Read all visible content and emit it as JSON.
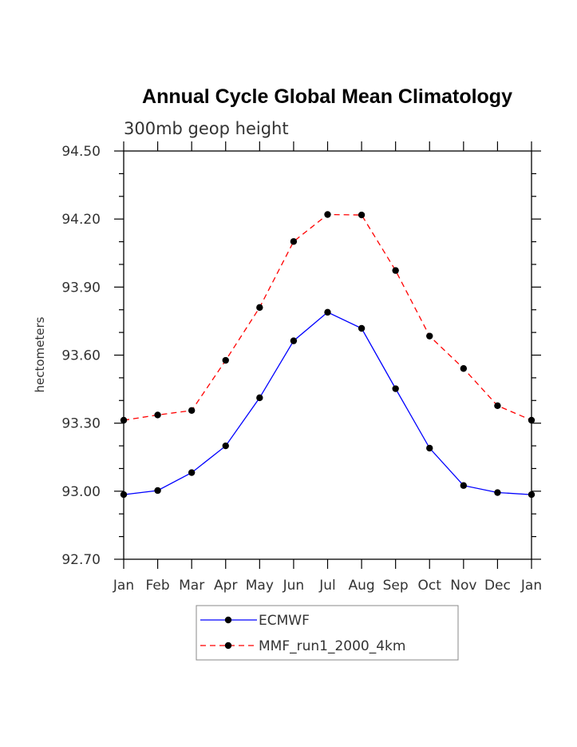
{
  "chart_data": {
    "type": "line",
    "title": "Annual Cycle Global Mean Climatology",
    "subtitle": "300mb geop height",
    "ylabel": "hectometers",
    "xlabel": "",
    "categories": [
      "Jan",
      "Feb",
      "Mar",
      "Apr",
      "May",
      "Jun",
      "Jul",
      "Aug",
      "Sep",
      "Oct",
      "Nov",
      "Dec",
      "Jan"
    ],
    "ylim": [
      92.7,
      94.5
    ],
    "yticks": [
      "92.70",
      "93.00",
      "93.30",
      "93.60",
      "93.90",
      "94.20",
      "94.50"
    ],
    "legend_position": "bottom-center",
    "series": [
      {
        "name": "ECMWF",
        "color": "#0000ff",
        "line_style": "solid",
        "marker": "filled-circle",
        "values": [
          92.985,
          93.003,
          93.082,
          93.2,
          93.412,
          93.663,
          93.789,
          93.718,
          93.452,
          93.19,
          93.025,
          92.994,
          92.985
        ]
      },
      {
        "name": "MMF_run1_2000_4km",
        "color": "#ff0000",
        "line_style": "dashed",
        "marker": "filled-circle",
        "values": [
          93.313,
          93.336,
          93.356,
          93.577,
          93.81,
          94.101,
          94.22,
          94.218,
          93.973,
          93.684,
          93.541,
          93.377,
          93.313
        ]
      }
    ]
  }
}
